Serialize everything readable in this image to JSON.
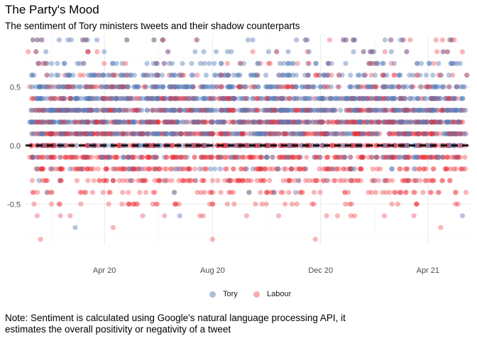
{
  "chart_data": {
    "type": "scatter",
    "title": "The Party's Mood",
    "subtitle": "The sentiment of Tory ministers tweets and their shadow counterparts",
    "caption_line1": "Note: Sentiment is calculated using Google's natural language processing API, it",
    "caption_line2": "estimates the overall positivity or negativity of a tweet",
    "xlabel": "",
    "ylabel": "",
    "x_range": [
      "2020-01-03",
      "2021-05-20"
    ],
    "ylim": [
      -0.85,
      0.95
    ],
    "x_ticks": [
      {
        "label": "Apr 20",
        "date": "2020-04-01"
      },
      {
        "label": "Aug 20",
        "date": "2020-08-01"
      },
      {
        "label": "Dec 20",
        "date": "2020-12-01"
      },
      {
        "label": "Apr 21",
        "date": "2021-04-01"
      }
    ],
    "y_ticks": [
      {
        "label": "0.5",
        "value": 0.5
      },
      {
        "label": "0.0",
        "value": 0.0
      },
      {
        "label": "-0.5",
        "value": -0.5
      }
    ],
    "reference_line": {
      "y": 0,
      "style": "dashed",
      "color": "#000000"
    },
    "grid": true,
    "legend_position": "bottom",
    "series": [
      {
        "name": "Tory",
        "color": "#5b7fb8"
      },
      {
        "name": "Labour",
        "color": "#ee2b33"
      }
    ],
    "point_sample": {
      "note_on_density": "",
      "points": [
        {
          "series": "Tory",
          "x": "2020-02-10",
          "y": 0.9
        },
        {
          "series": "Tory",
          "x": "2020-02-20",
          "y": 0.9
        },
        {
          "series": "Tory",
          "x": "2020-07-22",
          "y": 0.8
        },
        {
          "series": "Tory",
          "x": "2020-09-10",
          "y": 0.9
        },
        {
          "series": "Tory",
          "x": "2021-03-01",
          "y": 0.9
        },
        {
          "series": "Tory",
          "x": "2021-05-10",
          "y": -0.6
        },
        {
          "series": "Tory",
          "x": "2020-02-28",
          "y": -0.7
        },
        {
          "series": "Tory",
          "x": "2020-06-25",
          "y": -0.6
        },
        {
          "series": "Labour",
          "x": "2020-01-06",
          "y": 0.8
        },
        {
          "series": "Labour",
          "x": "2020-01-20",
          "y": -0.8
        },
        {
          "series": "Labour",
          "x": "2020-08-01",
          "y": -0.8
        },
        {
          "series": "Labour",
          "x": "2020-11-25",
          "y": -0.8
        },
        {
          "series": "Labour",
          "x": "2021-05-10",
          "y": 0.8
        },
        {
          "series": "Labour",
          "x": "2020-04-25",
          "y": 0.7
        },
        {
          "series": "Labour",
          "x": "2020-12-20",
          "y": -0.6
        }
      ]
    }
  }
}
